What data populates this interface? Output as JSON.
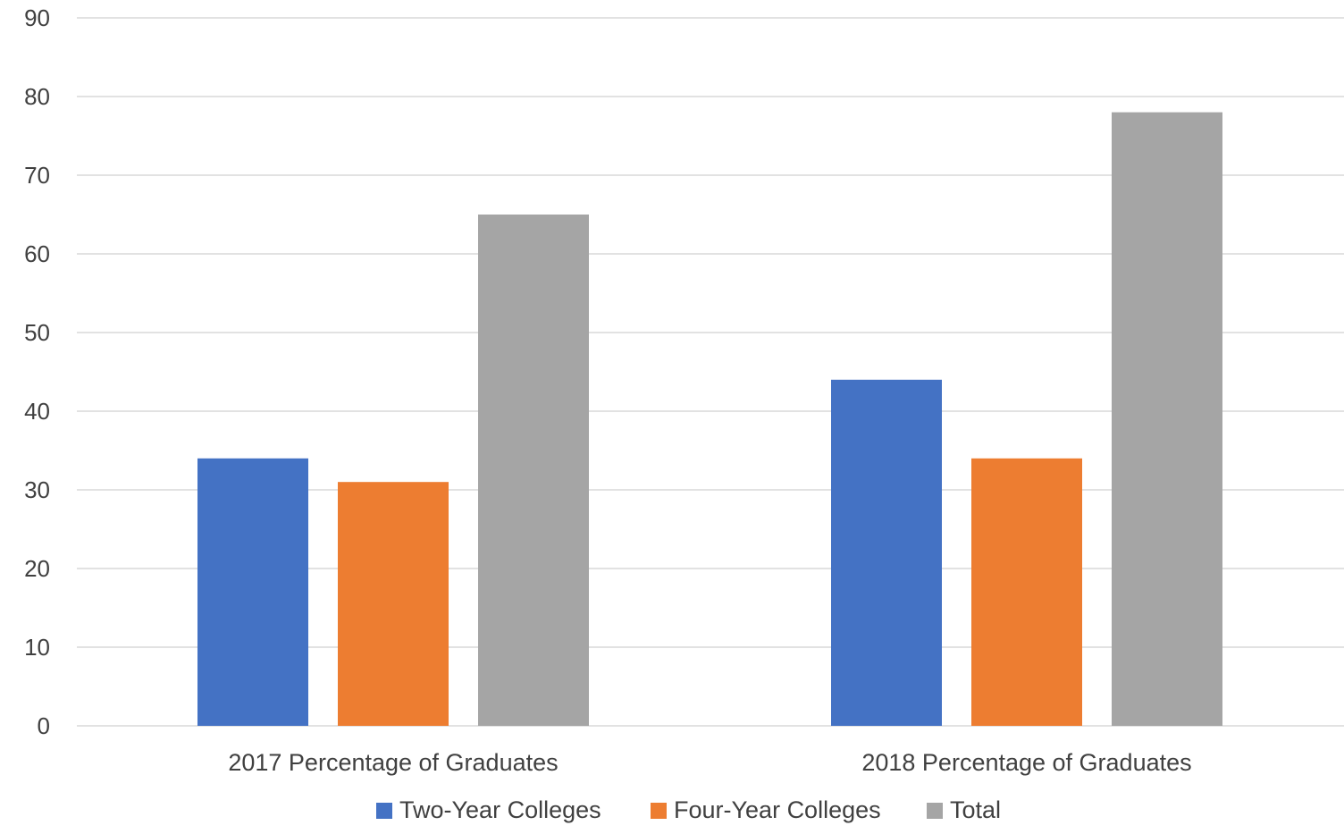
{
  "chart_data": {
    "type": "bar",
    "title": "",
    "xlabel": "",
    "ylabel": "",
    "categories": [
      "2017 Percentage of Graduates",
      "2018 Percentage of Graduates"
    ],
    "series": [
      {
        "name": "Two-Year Colleges",
        "color": "#4472C4",
        "values": [
          34,
          44
        ]
      },
      {
        "name": "Four-Year Colleges",
        "color": "#ED7D31",
        "values": [
          31,
          34
        ]
      },
      {
        "name": "Total",
        "color": "#A5A5A5",
        "values": [
          65,
          78
        ]
      }
    ],
    "ylim": [
      0,
      90
    ],
    "yticks": [
      0,
      10,
      20,
      30,
      40,
      50,
      60,
      70,
      80,
      90
    ],
    "grid": true,
    "legend_position": "bottom",
    "gridline_color": "#D9D9D9"
  }
}
